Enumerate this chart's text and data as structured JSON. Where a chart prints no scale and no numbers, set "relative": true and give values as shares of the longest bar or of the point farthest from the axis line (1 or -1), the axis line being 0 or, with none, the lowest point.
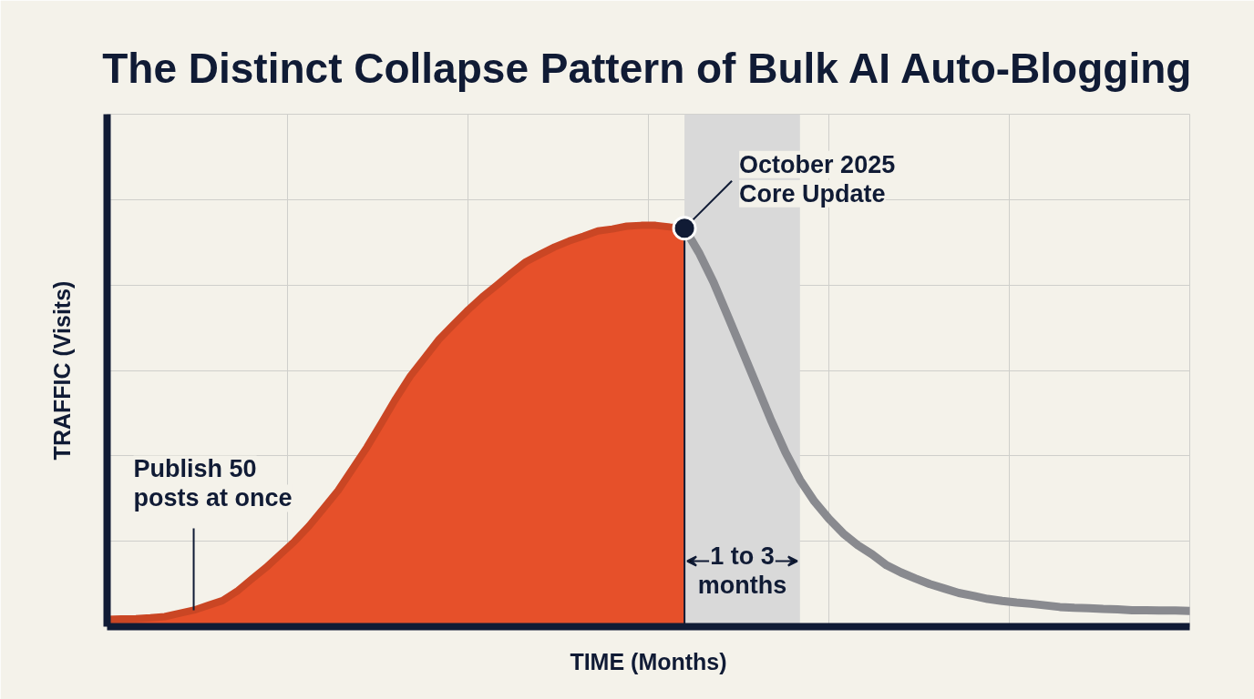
{
  "chart_data": {
    "type": "area",
    "title": "The Distinct Collapse Pattern of Bulk AI Auto-Blogging",
    "xlabel": "TIME (Months)",
    "ylabel": "TRAFFIC (Visits)",
    "relative": true,
    "grid": true,
    "categories": [
      null,
      null,
      null,
      null,
      null,
      null,
      null,
      null,
      null,
      null,
      null,
      null,
      null,
      null,
      null,
      null,
      null,
      null,
      null,
      null,
      null,
      null,
      null,
      null,
      null,
      null,
      null,
      null,
      null,
      null,
      null,
      null,
      null,
      null,
      null,
      null,
      null,
      null,
      null,
      null,
      null,
      null,
      null,
      null,
      null,
      null,
      null,
      null,
      null,
      null,
      null,
      null,
      null,
      null,
      null,
      null,
      null,
      null,
      null,
      null,
      null,
      null,
      null,
      null,
      null,
      null,
      null,
      null,
      null,
      null,
      null,
      null,
      null,
      null,
      null,
      null
    ],
    "series": [
      {
        "color": "#e6502a",
        "values": [
          0.018,
          0.019,
          0.02,
          0.022,
          0.025,
          0.033,
          0.041,
          0.053,
          0.065,
          0.088,
          0.118,
          0.147,
          0.18,
          0.213,
          0.251,
          0.295,
          0.339,
          0.393,
          0.447,
          0.507,
          0.568,
          0.624,
          0.67,
          0.716,
          0.753,
          0.789,
          0.822,
          0.851,
          0.881,
          0.909,
          0.928,
          0.946,
          0.961,
          0.973,
          0.986,
          0.991,
          0.998,
          1.0,
          1.0,
          0.996,
          0.993,
          null,
          null,
          null,
          null,
          null,
          null,
          null,
          null,
          null,
          null,
          null,
          null,
          null,
          null,
          null,
          null,
          null,
          null,
          null,
          null,
          null,
          null,
          null,
          null,
          null,
          null,
          null,
          null,
          null,
          null,
          null,
          null,
          null,
          null,
          null
        ]
      },
      {
        "type": "line",
        "color": "#898a8f",
        "values": [
          null,
          null,
          null,
          null,
          null,
          null,
          null,
          null,
          null,
          null,
          null,
          null,
          null,
          null,
          null,
          null,
          null,
          null,
          null,
          null,
          null,
          null,
          null,
          null,
          null,
          null,
          null,
          null,
          null,
          null,
          null,
          null,
          null,
          null,
          null,
          null,
          null,
          null,
          null,
          null,
          0.993,
          0.932,
          0.859,
          0.774,
          0.688,
          0.601,
          0.514,
          0.434,
          0.366,
          0.312,
          0.269,
          0.232,
          0.203,
          0.18,
          0.153,
          0.135,
          0.12,
          0.106,
          0.095,
          0.084,
          0.077,
          0.069,
          0.064,
          0.06,
          0.057,
          0.053,
          0.049,
          0.047,
          0.046,
          0.044,
          0.043,
          0.041,
          0.041,
          0.04,
          0.04,
          0.039
        ]
      }
    ],
    "annotations": [
      "Publish 50 posts at once",
      "October 2025 Core Update",
      "1 to 3 months"
    ]
  }
}
